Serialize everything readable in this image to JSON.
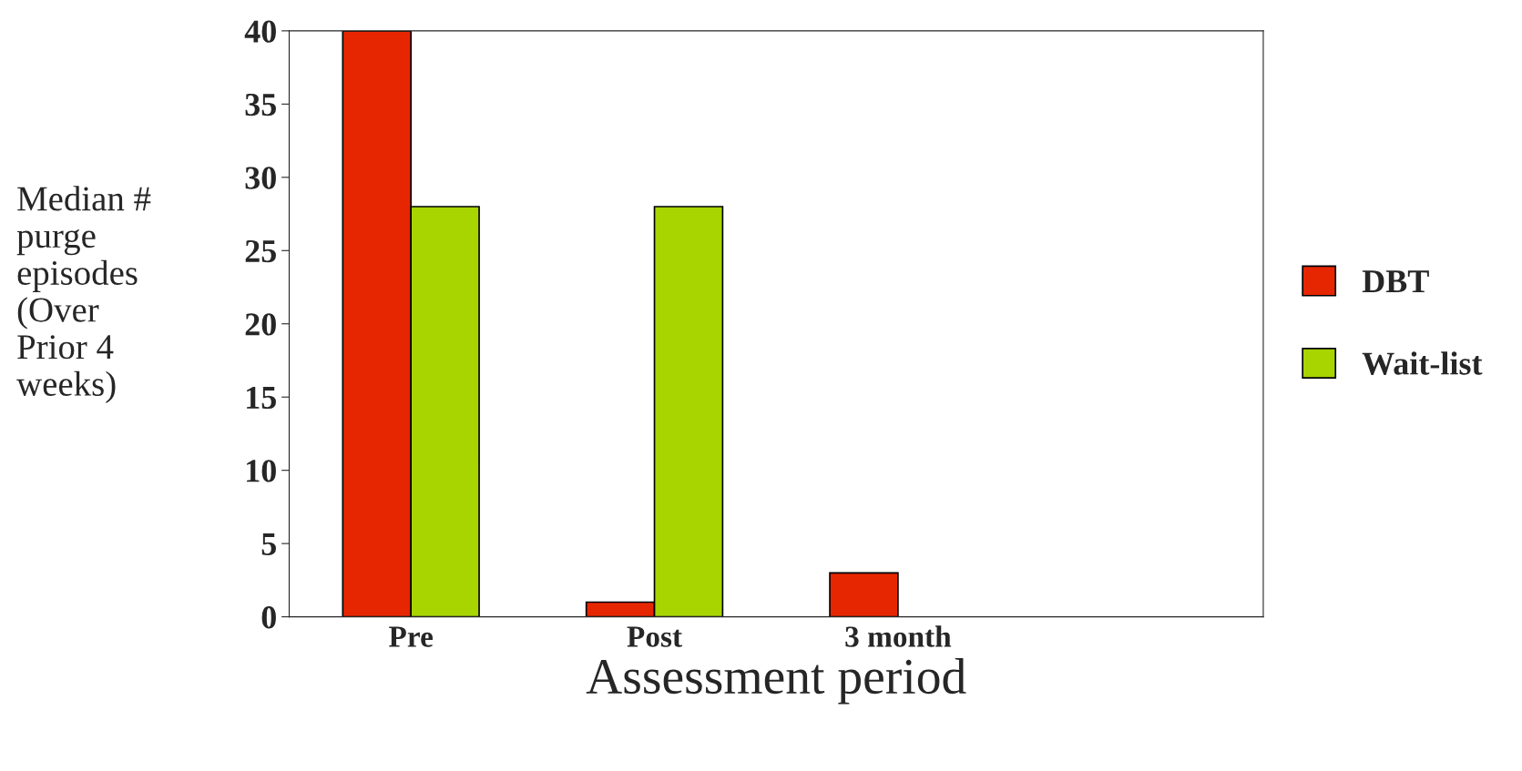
{
  "chart_data": {
    "type": "bar",
    "xlabel": "Assessment period",
    "ylabel": "Median #\npurge\nepisodes\n(Over\nPrior 4\nweeks)",
    "categories": [
      "Pre",
      "Post",
      "3 month",
      null
    ],
    "series": [
      {
        "name": "DBT",
        "color": "#e62600",
        "values": [
          40,
          1,
          3,
          null
        ]
      },
      {
        "name": "Wait-list",
        "color": "#a8d400",
        "values": [
          28,
          28,
          null,
          null
        ]
      }
    ],
    "ylim": [
      0,
      40
    ],
    "yticks": [
      0,
      5,
      10,
      15,
      20,
      25,
      30,
      35,
      40
    ],
    "grid": false,
    "legend": "right"
  }
}
